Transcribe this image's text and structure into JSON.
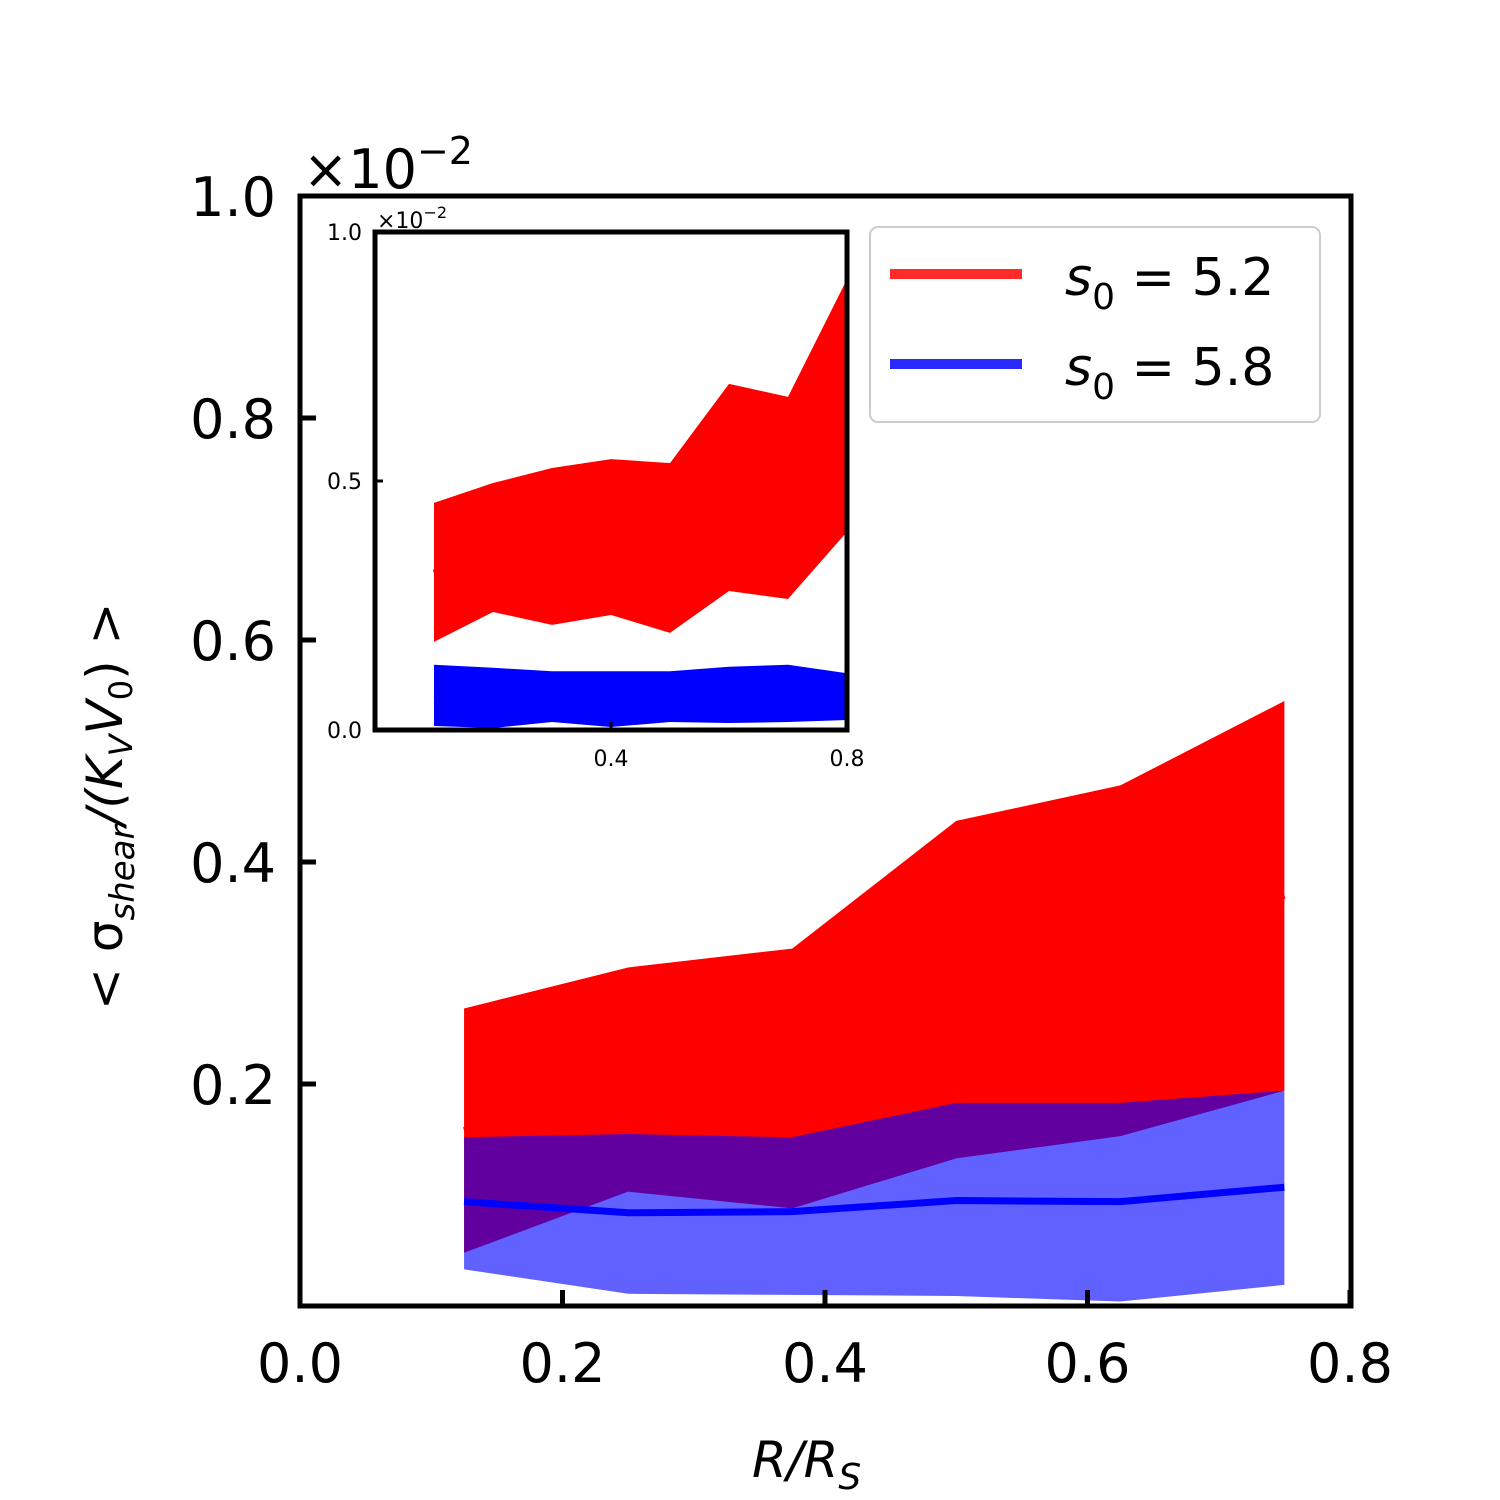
{
  "chart_data": [
    {
      "name": "main",
      "type": "area",
      "xlabel": "R/R_S",
      "ylabel": "< σ_shear/(K_V V_0) >",
      "y_scale_note": "×10^−2",
      "xlim": [
        0.0,
        0.8
      ],
      "ylim": [
        0.0,
        1.0
      ],
      "xticks": [
        "0.0",
        "0.2",
        "0.4",
        "0.6",
        "0.8"
      ],
      "yticks": [
        "0.2",
        "0.4",
        "0.6",
        "0.8",
        "1.0"
      ],
      "x": [
        0.125,
        0.25,
        0.375,
        0.5,
        0.625,
        0.75
      ],
      "series": [
        {
          "name": "s0 = 5.2",
          "color": "#ff0000",
          "legend_color": "#ff2a2a",
          "mean": [
            0.158,
            0.2,
            0.24,
            0.29,
            0.32,
            0.37
          ],
          "upper": [
            0.268,
            0.305,
            0.322,
            0.437,
            0.469,
            0.545
          ],
          "lower": [
            0.048,
            0.103,
            0.088,
            0.133,
            0.153,
            0.194
          ]
        },
        {
          "name": "s0 = 5.8",
          "color": "#0000ff",
          "legend_color": "#2a2aff",
          "alpha": 0.62,
          "mean": [
            0.094,
            0.084,
            0.085,
            0.095,
            0.094,
            0.107
          ],
          "upper": [
            0.152,
            0.155,
            0.152,
            0.183,
            0.183,
            0.194
          ],
          "lower": [
            0.033,
            0.011,
            0.01,
            0.009,
            0.004,
            0.019
          ]
        }
      ],
      "grid": false,
      "legend_position": "upper right"
    },
    {
      "name": "inset",
      "type": "area",
      "y_scale_note": "×10^−2",
      "xlim": [
        0.0,
        0.8
      ],
      "ylim": [
        0.0,
        1.0
      ],
      "xticks": [
        "0.4",
        "0.8"
      ],
      "yticks": [
        "0.0",
        "0.5",
        "1.0"
      ],
      "x": [
        0.1,
        0.2,
        0.3,
        0.4,
        0.5,
        0.6,
        0.7,
        0.8
      ],
      "series": [
        {
          "name": "s0 = 5.2",
          "color": "#ff0000",
          "mean": [
            0.315,
            0.36,
            0.37,
            0.39,
            0.365,
            0.49,
            0.47,
            0.65
          ],
          "upper": [
            0.456,
            0.496,
            0.526,
            0.544,
            0.536,
            0.695,
            0.669,
            0.905
          ],
          "lower": [
            0.177,
            0.237,
            0.211,
            0.231,
            0.195,
            0.279,
            0.263,
            0.398
          ]
        },
        {
          "name": "s0 = 5.8",
          "color": "#0000ff",
          "mean": [
            0.072,
            0.068,
            0.068,
            0.064,
            0.066,
            0.07,
            0.072,
            0.068
          ],
          "upper": [
            0.131,
            0.125,
            0.118,
            0.118,
            0.118,
            0.127,
            0.131,
            0.114
          ],
          "lower": [
            0.008,
            0.004,
            0.016,
            0.006,
            0.016,
            0.014,
            0.016,
            0.02
          ]
        }
      ]
    }
  ],
  "labels": {
    "main_x_axis": "R/R",
    "main_x_axis_sub": "S",
    "main_offset": "×10",
    "main_offset_exp": "−2",
    "inset_offset": "×10",
    "inset_offset_exp": "−2",
    "y_axis_prefix": "< σ",
    "y_axis_sub": "shear",
    "y_axis_mid": "/(K",
    "y_axis_sub2": "V",
    "y_axis_mid2": "V",
    "y_axis_sub3": "0",
    "y_axis_suffix": ") >"
  },
  "legend": {
    "items": [
      {
        "label_base": "s",
        "label_sub": "0",
        "label_rest": " = 5.2",
        "color": "#ff2a2a"
      },
      {
        "label_base": "s",
        "label_sub": "0",
        "label_rest": " = 5.8",
        "color": "#2a2aff"
      }
    ]
  }
}
